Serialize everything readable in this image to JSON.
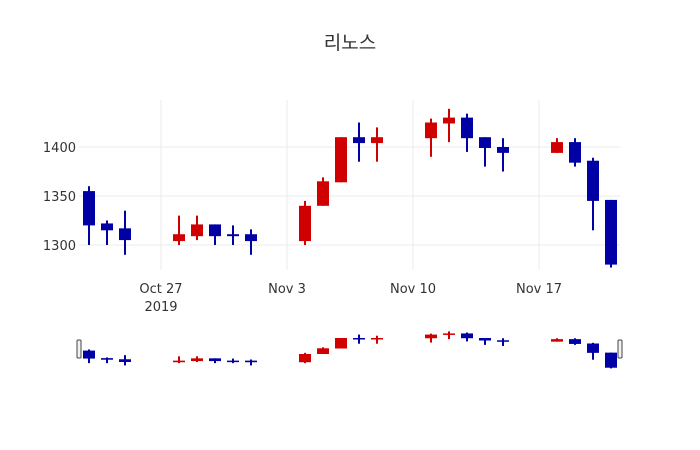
{
  "chart_data": {
    "type": "candlestick",
    "title": "리노스",
    "xlabel": "",
    "ylabel": "",
    "ylim": [
      1270,
      1445
    ],
    "yticks": [
      1300,
      1350,
      1400
    ],
    "xticks": [
      {
        "label": "Oct 27",
        "sublabel": "2019",
        "date": "2019-10-27"
      },
      {
        "label": "Nov 3",
        "sublabel": "",
        "date": "2019-11-03"
      },
      {
        "label": "Nov 10",
        "sublabel": "",
        "date": "2019-11-10"
      },
      {
        "label": "Nov 17",
        "sublabel": "",
        "date": "2019-11-17"
      }
    ],
    "increasing_color": "#d10000",
    "decreasing_color": "#0000a5",
    "grid": true,
    "rangeslider": true,
    "candles": [
      {
        "date": "2019-10-23",
        "open": 1355,
        "high": 1360,
        "low": 1300,
        "close": 1320
      },
      {
        "date": "2019-10-24",
        "open": 1322,
        "high": 1325,
        "low": 1300,
        "close": 1315
      },
      {
        "date": "2019-10-25",
        "open": 1317,
        "high": 1335,
        "low": 1290,
        "close": 1305
      },
      {
        "date": "2019-10-28",
        "open": 1304,
        "high": 1330,
        "low": 1300,
        "close": 1311
      },
      {
        "date": "2019-10-29",
        "open": 1309,
        "high": 1330,
        "low": 1305,
        "close": 1321
      },
      {
        "date": "2019-10-30",
        "open": 1321,
        "high": 1321,
        "low": 1300,
        "close": 1309
      },
      {
        "date": "2019-10-31",
        "open": 1311,
        "high": 1320,
        "low": 1300,
        "close": 1309
      },
      {
        "date": "2019-11-01",
        "open": 1311,
        "high": 1316,
        "low": 1290,
        "close": 1304
      },
      {
        "date": "2019-11-04",
        "open": 1304,
        "high": 1345,
        "low": 1300,
        "close": 1340
      },
      {
        "date": "2019-11-05",
        "open": 1340,
        "high": 1369,
        "low": 1340,
        "close": 1365
      },
      {
        "date": "2019-11-06",
        "open": 1364,
        "high": 1410,
        "low": 1364,
        "close": 1410
      },
      {
        "date": "2019-11-07",
        "open": 1410,
        "high": 1425,
        "low": 1385,
        "close": 1404
      },
      {
        "date": "2019-11-08",
        "open": 1404,
        "high": 1420,
        "low": 1385,
        "close": 1410
      },
      {
        "date": "2019-11-11",
        "open": 1409,
        "high": 1429,
        "low": 1390,
        "close": 1425
      },
      {
        "date": "2019-11-12",
        "open": 1424,
        "high": 1439,
        "low": 1405,
        "close": 1430
      },
      {
        "date": "2019-11-13",
        "open": 1430,
        "high": 1434,
        "low": 1395,
        "close": 1409
      },
      {
        "date": "2019-11-14",
        "open": 1410,
        "high": 1410,
        "low": 1380,
        "close": 1399
      },
      {
        "date": "2019-11-15",
        "open": 1400,
        "high": 1409,
        "low": 1375,
        "close": 1394
      },
      {
        "date": "2019-11-18",
        "open": 1394,
        "high": 1409,
        "low": 1394,
        "close": 1405
      },
      {
        "date": "2019-11-19",
        "open": 1405,
        "high": 1409,
        "low": 1380,
        "close": 1384
      },
      {
        "date": "2019-11-20",
        "open": 1386,
        "high": 1389,
        "low": 1315,
        "close": 1345
      },
      {
        "date": "2019-11-21",
        "open": 1346,
        "high": 1346,
        "low": 1277,
        "close": 1280
      }
    ]
  }
}
